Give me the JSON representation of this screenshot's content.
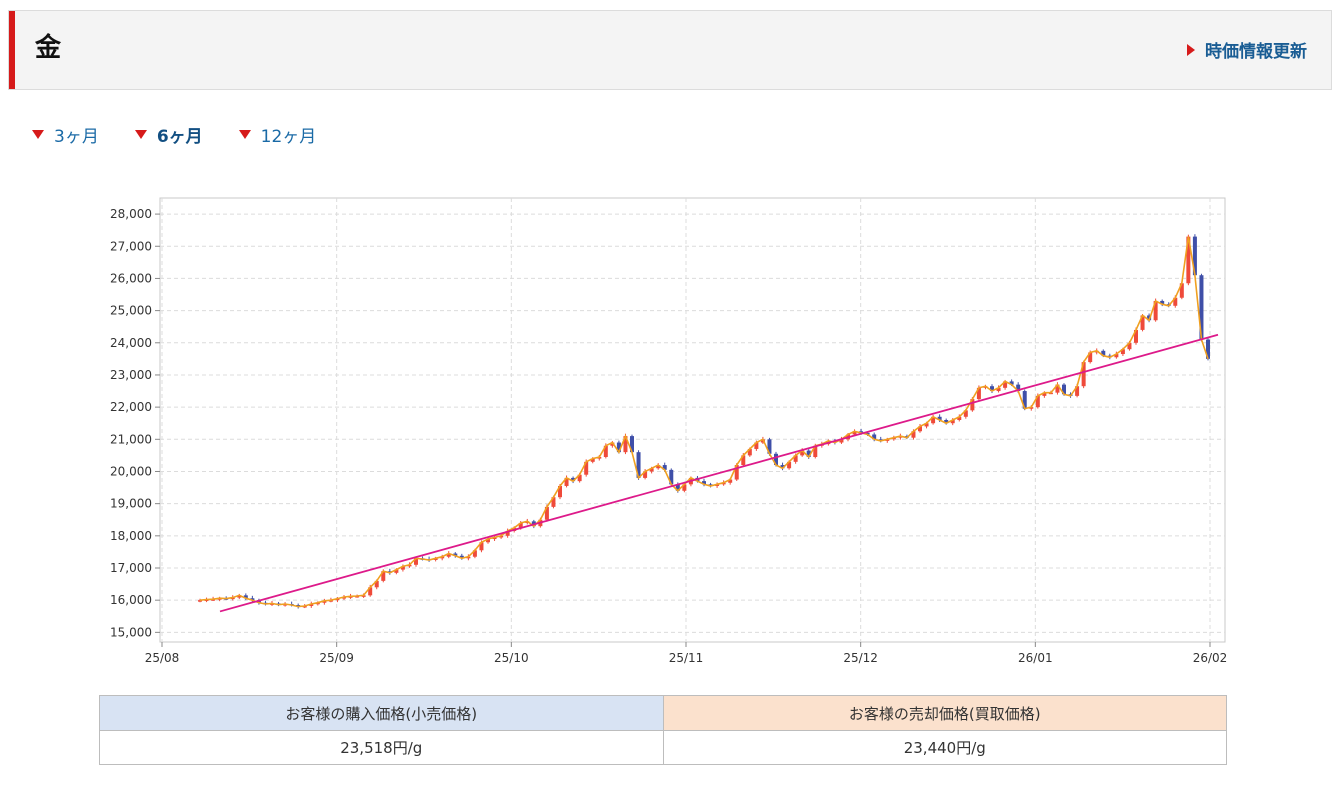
{
  "header": {
    "title": "金",
    "update_label": "時価情報更新"
  },
  "tabs": [
    {
      "label": "3ヶ月",
      "active": false
    },
    {
      "label": "6ヶ月",
      "active": true
    },
    {
      "label": "12ヶ月",
      "active": false
    }
  ],
  "chart_data": {
    "type": "candlestick",
    "title": "",
    "xlabel": "",
    "ylabel": "",
    "ylim": [
      14700,
      28500
    ],
    "y_ticks": [
      "15,000",
      "16,000",
      "17,000",
      "18,000",
      "19,000",
      "20,000",
      "21,000",
      "22,000",
      "23,000",
      "24,000",
      "25,000",
      "26,000",
      "27,000",
      "28,000"
    ],
    "x_ticks": [
      "25/08",
      "25/09",
      "25/10",
      "25/11",
      "25/12",
      "26/01",
      "26/02"
    ],
    "grid": true,
    "colors": {
      "up": "#ef4a3a",
      "down": "#3f4fa8",
      "close_line": "#f0a020",
      "trend": "#dd1a8a"
    },
    "series": [
      {
        "values": [
          16000,
          16020,
          16030,
          16060,
          16050,
          16080,
          16150,
          16060,
          16000,
          15920,
          15880,
          15900,
          15860,
          15880,
          15850,
          15800,
          15820,
          15880,
          15920,
          15980,
          16000,
          16050,
          16100,
          16120,
          16130,
          16150,
          16400,
          16600,
          16900,
          16850,
          16950,
          17050,
          17100,
          17300,
          17280,
          17250,
          17300,
          17350,
          17450,
          17380,
          17300,
          17350,
          17550,
          17800,
          17900,
          17950,
          18000,
          18150,
          18250,
          18400,
          18450,
          18300,
          18500,
          18900,
          19200,
          19550,
          19800,
          19700,
          19900,
          20300,
          20400,
          20450,
          20800,
          20900,
          20600,
          21100,
          20600,
          19800,
          20000,
          20100,
          20200,
          20050,
          19600,
          19400,
          19600,
          19800,
          19700,
          19600,
          19550,
          19600,
          19650,
          19750,
          20200,
          20500,
          20700,
          20900,
          21000,
          20550,
          20200,
          20100,
          20300,
          20500,
          20650,
          20450,
          20800,
          20850,
          20950,
          20900,
          21000,
          21150,
          21250,
          21200,
          21150,
          21000,
          20950,
          21000,
          21050,
          21100,
          21050,
          21250,
          21400,
          21500,
          21700,
          21600,
          21500,
          21600,
          21700,
          21900,
          22250,
          22600,
          22650,
          22500,
          22600,
          22800,
          22700,
          22500,
          21950,
          22000,
          22350,
          22450,
          22450,
          22700,
          22400,
          22350,
          22650,
          23400,
          23700,
          23750,
          23600,
          23550,
          23650,
          23800,
          24000,
          24400,
          24850,
          24700,
          25300,
          25200,
          25150,
          25400,
          25850,
          27300,
          26100,
          24100,
          23500
        ]
      }
    ],
    "trend": {
      "from": {
        "x": "25/08",
        "y": 15650
      },
      "to": {
        "x": "26/02",
        "y": 24250
      }
    }
  },
  "prices": {
    "buy_header": "お客様の購入価格(小売価格)",
    "sell_header": "お客様の売却価格(買取価格)",
    "buy_value": "23,518円/g",
    "sell_value": "23,440円/g"
  }
}
